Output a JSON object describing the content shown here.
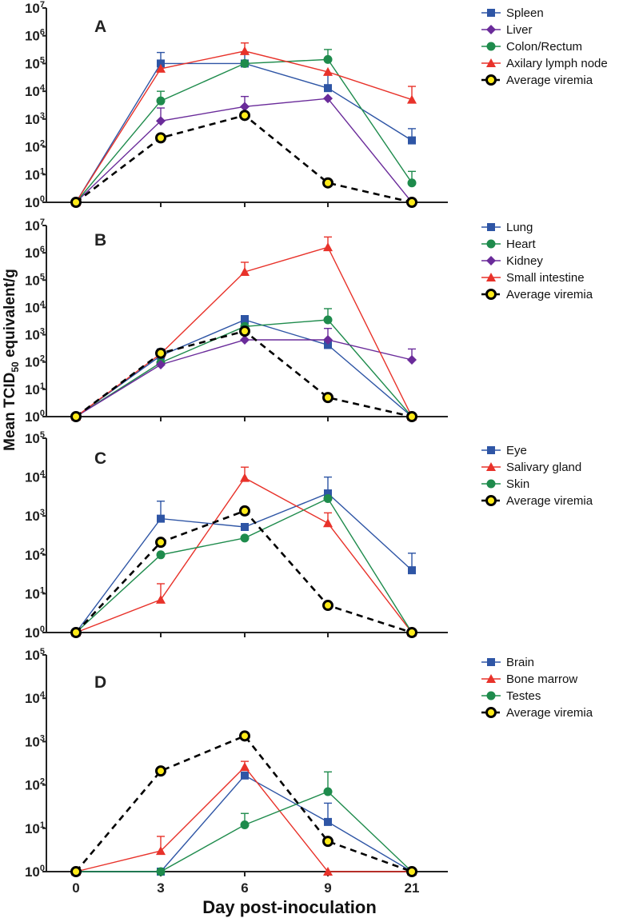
{
  "chart_data": {
    "type": "line",
    "x_ticks": [
      "0",
      "3",
      "6",
      "9",
      "21"
    ],
    "xlabel": "Day post-inoculation",
    "ylabel": "Mean TCID50 equivalent/g",
    "yscale": "log",
    "panels": [
      {
        "label": "A",
        "ylim": [
          1,
          10000000
        ],
        "series": [
          {
            "name": "Spleen",
            "color": "#2e55a5",
            "marker": "square",
            "values": [
              1,
              100000,
              100000,
              13000,
              170
            ],
            "errors": [
              null,
              250000,
              250000,
              40000,
              450
            ]
          },
          {
            "name": "Liver",
            "color": "#6a2b9a",
            "marker": "diamond",
            "values": [
              1,
              850,
              2800,
              5500,
              1
            ],
            "errors": [
              null,
              2500,
              6500,
              null,
              null
            ]
          },
          {
            "name": "Colon/Rectum",
            "color": "#1e8b4c",
            "marker": "circle",
            "values": [
              1,
              4500,
              100000,
              140000,
              5
            ],
            "errors": [
              null,
              10000,
              null,
              320000,
              13
            ]
          },
          {
            "name": "Axilary lymph node",
            "color": "#e8322a",
            "marker": "triangle",
            "values": [
              1,
              65000,
              280000,
              50000,
              5000
            ],
            "errors": [
              null,
              null,
              550000,
              null,
              15000
            ]
          },
          {
            "name": "Average viremia",
            "color": "#000000",
            "marker": "viremia",
            "values": [
              1,
              210,
              1350,
              5,
              1
            ],
            "errors": [
              null,
              null,
              null,
              null,
              null
            ]
          }
        ]
      },
      {
        "label": "B",
        "ylim": [
          1,
          10000000
        ],
        "series": [
          {
            "name": "Lung",
            "color": "#2e55a5",
            "marker": "square",
            "values": [
              1,
              170,
              3500,
              420,
              1
            ],
            "errors": [
              null,
              300,
              5000,
              null,
              null
            ]
          },
          {
            "name": "Heart",
            "color": "#1e8b4c",
            "marker": "circle",
            "values": [
              1,
              95,
              2000,
              3500,
              1
            ],
            "errors": [
              null,
              null,
              null,
              9000,
              null
            ]
          },
          {
            "name": "Kidney",
            "color": "#6a2b9a",
            "marker": "diamond",
            "values": [
              1,
              80,
              650,
              650,
              120
            ],
            "errors": [
              null,
              null,
              null,
              1700,
              300
            ]
          },
          {
            "name": "Small intestine",
            "color": "#e8322a",
            "marker": "triangle",
            "values": [
              1,
              200,
              200000,
              1600000,
              1
            ],
            "errors": [
              null,
              null,
              450000,
              3800000,
              null
            ]
          },
          {
            "name": "Average viremia",
            "color": "#000000",
            "marker": "viremia",
            "values": [
              1,
              210,
              1350,
              5,
              1
            ],
            "errors": [
              null,
              null,
              null,
              null,
              null
            ]
          }
        ]
      },
      {
        "label": "C",
        "ylim": [
          1,
          100000
        ],
        "series": [
          {
            "name": "Eye",
            "color": "#2e55a5",
            "marker": "square",
            "values": [
              1,
              850,
              520,
              3800,
              40
            ],
            "errors": [
              null,
              2400,
              null,
              10000,
              110
            ]
          },
          {
            "name": "Salivary gland",
            "color": "#e8322a",
            "marker": "triangle",
            "values": [
              1,
              7,
              9500,
              650,
              1
            ],
            "errors": [
              null,
              18,
              18000,
              1200,
              null
            ]
          },
          {
            "name": "Skin",
            "color": "#1e8b4c",
            "marker": "circle",
            "values": [
              1,
              100,
              270,
              2800,
              1
            ],
            "errors": [
              null,
              null,
              null,
              null,
              null
            ]
          },
          {
            "name": "Average viremia",
            "color": "#000000",
            "marker": "viremia",
            "values": [
              1,
              210,
              1350,
              5,
              1
            ],
            "errors": [
              null,
              null,
              null,
              null,
              null
            ]
          }
        ]
      },
      {
        "label": "D",
        "ylim": [
          1,
          100000
        ],
        "series": [
          {
            "name": "Brain",
            "color": "#2e55a5",
            "marker": "square",
            "values": [
              1,
              1,
              165,
              14,
              1
            ],
            "errors": [
              null,
              null,
              null,
              38,
              null
            ]
          },
          {
            "name": "Bone marrow",
            "color": "#e8322a",
            "marker": "triangle",
            "values": [
              1,
              3,
              260,
              1,
              1
            ],
            "errors": [
              null,
              6.5,
              350,
              null,
              null
            ]
          },
          {
            "name": "Testes",
            "color": "#1e8b4c",
            "marker": "circle",
            "values": [
              1,
              1,
              12,
              70,
              1
            ],
            "errors": [
              null,
              null,
              22,
              200,
              null
            ]
          },
          {
            "name": "Average viremia",
            "color": "#000000",
            "marker": "viremia",
            "values": [
              1,
              210,
              1350,
              5,
              1
            ],
            "errors": [
              null,
              null,
              null,
              null,
              null
            ]
          }
        ]
      }
    ]
  }
}
